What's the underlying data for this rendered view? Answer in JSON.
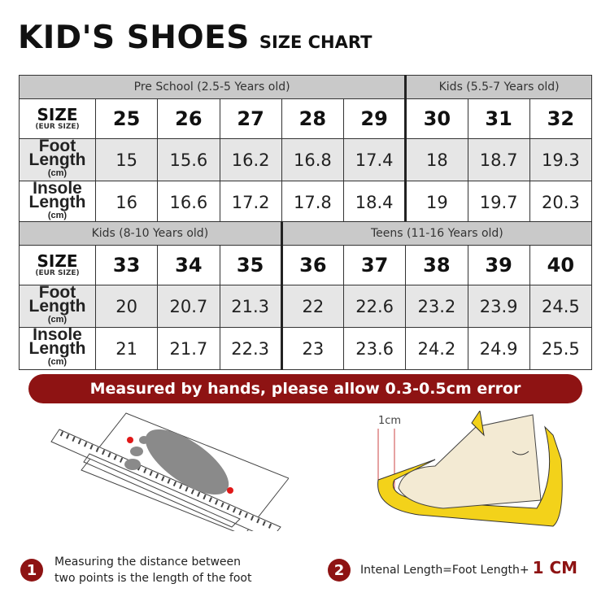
{
  "title": {
    "main": "KID'S SHOES",
    "sub": "SIZE CHART"
  },
  "labels": {
    "size": "SIZE",
    "size_sub": "(EUR SIZE)",
    "foot": "Foot Length",
    "insole": "Insole Length",
    "unit": "(cm)"
  },
  "top": {
    "groups": [
      "Pre School (2.5-5 Years old)",
      "Kids (5.5-7 Years old)"
    ],
    "sizes": [
      "25",
      "26",
      "27",
      "28",
      "29",
      "30",
      "31",
      "32"
    ],
    "foot": [
      "15",
      "15.6",
      "16.2",
      "16.8",
      "17.4",
      "18",
      "18.7",
      "19.3"
    ],
    "insole": [
      "16",
      "16.6",
      "17.2",
      "17.8",
      "18.4",
      "19",
      "19.7",
      "20.3"
    ]
  },
  "bottom": {
    "groups": [
      "Kids (8-10 Years old)",
      "Teens (11-16 Years old)"
    ],
    "sizes": [
      "33",
      "34",
      "35",
      "36",
      "37",
      "38",
      "39",
      "40"
    ],
    "foot": [
      "20",
      "20.7",
      "21.3",
      "22",
      "22.6",
      "23.2",
      "23.9",
      "24.5"
    ],
    "insole": [
      "21",
      "21.7",
      "22.3",
      "23",
      "23.6",
      "24.2",
      "24.9",
      "25.5"
    ]
  },
  "banner": "Measured by hands, please allow 0.3-0.5cm error",
  "illustration": {
    "ruler_label": "1cm"
  },
  "steps": [
    {
      "num": "1",
      "text1": "Measuring the distance between",
      "text2": "two points is the length of the foot"
    },
    {
      "num": "2",
      "text": "Intenal Length=Foot Length+",
      "emph": "1 CM"
    }
  ],
  "colors": {
    "accent": "#8e1313",
    "header": "#c9c9c9",
    "shoe": "#f3d21a"
  }
}
